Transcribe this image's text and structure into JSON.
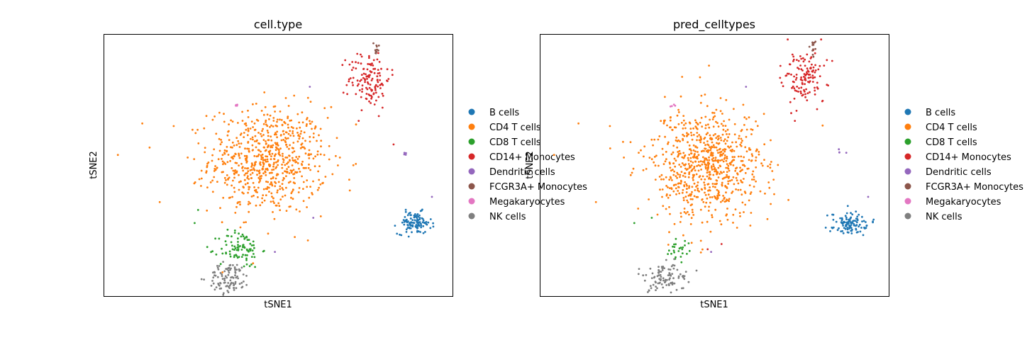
{
  "categories": [
    "B cells",
    "CD4 T cells",
    "CD8 T cells",
    "CD14+ Monocytes",
    "Dendritic cells",
    "FCGR3A+ Monocytes",
    "Megakaryocytes",
    "NK cells"
  ],
  "colors": {
    "B cells": "#1f77b4",
    "CD4 T cells": "#ff7f0e",
    "CD8 T cells": "#2ca02c",
    "CD14+ Monocytes": "#d62728",
    "Dendritic cells": "#9467bd",
    "FCGR3A+ Monocytes": "#8c564b",
    "Megakaryocytes": "#e377c2",
    "NK cells": "#7f7f7f"
  },
  "chart_data": [
    {
      "type": "scatter",
      "title": "cell.type",
      "xlabel": "tSNE1",
      "ylabel": "tSNE2",
      "ticks": "none",
      "legend": {
        "placement": "right",
        "entries": [
          "B cells",
          "CD4 T cells",
          "CD8 T cells",
          "CD14+ Monocytes",
          "Dendritic cells",
          "FCGR3A+ Monocytes",
          "Megakaryocytes",
          "NK cells"
        ]
      },
      "clusters": [
        {
          "category": "CD4 T cells",
          "center": [
            0.47,
            0.52
          ],
          "spread": [
            0.14,
            0.17
          ],
          "n": 700
        },
        {
          "category": "B cells",
          "center": [
            0.89,
            0.28
          ],
          "spread": [
            0.04,
            0.035
          ],
          "n": 110
        },
        {
          "category": "CD14+ Monocytes",
          "center": [
            0.76,
            0.83
          ],
          "spread": [
            0.05,
            0.09
          ],
          "n": 130
        },
        {
          "category": "FCGR3A+ Monocytes",
          "center": [
            0.78,
            0.95
          ],
          "spread": [
            0.01,
            0.03
          ],
          "n": 12
        },
        {
          "category": "CD8 T cells",
          "center": [
            0.39,
            0.18
          ],
          "spread": [
            0.05,
            0.06
          ],
          "n": 90
        },
        {
          "category": "NK cells",
          "center": [
            0.36,
            0.07
          ],
          "spread": [
            0.05,
            0.05
          ],
          "n": 100
        },
        {
          "category": "Dendritic cells",
          "center": [
            0.86,
            0.55
          ],
          "spread": [
            0.01,
            0.01
          ],
          "n": 4
        },
        {
          "category": "Megakaryocytes",
          "center": [
            0.38,
            0.73
          ],
          "spread": [
            0.006,
            0.004
          ],
          "n": 4
        }
      ],
      "outliers": [
        {
          "category": "CD4 T cells",
          "x": 0.11,
          "y": 0.66
        },
        {
          "category": "CD4 T cells",
          "x": 0.2,
          "y": 0.65
        },
        {
          "category": "CD4 T cells",
          "x": 0.04,
          "y": 0.54
        },
        {
          "category": "CD4 T cells",
          "x": 0.24,
          "y": 0.53
        },
        {
          "category": "CD4 T cells",
          "x": 0.28,
          "y": 0.45
        },
        {
          "category": "CD4 T cells",
          "x": 0.16,
          "y": 0.36
        },
        {
          "category": "CD8 T cells",
          "x": 0.27,
          "y": 0.33
        },
        {
          "category": "CD8 T cells",
          "x": 0.26,
          "y": 0.28
        },
        {
          "category": "CD14+ Monocytes",
          "x": 0.73,
          "y": 0.67
        },
        {
          "category": "CD14+ Monocytes",
          "x": 0.83,
          "y": 0.58
        },
        {
          "category": "Dendritic cells",
          "x": 0.59,
          "y": 0.8
        },
        {
          "category": "Dendritic cells",
          "x": 0.94,
          "y": 0.38
        },
        {
          "category": "Dendritic cells",
          "x": 0.6,
          "y": 0.3
        },
        {
          "category": "Dendritic cells",
          "x": 0.49,
          "y": 0.17
        }
      ]
    },
    {
      "type": "scatter",
      "title": "pred_celltypes",
      "xlabel": "tSNE1",
      "ylabel": "tSNE2",
      "ticks": "none",
      "legend": {
        "placement": "right",
        "entries": [
          "B cells",
          "CD4 T cells",
          "CD8 T cells",
          "CD14+ Monocytes",
          "Dendritic cells",
          "FCGR3A+ Monocytes",
          "Megakaryocytes",
          "NK cells"
        ]
      },
      "clusters": [
        {
          "category": "CD4 T cells",
          "center": [
            0.47,
            0.5
          ],
          "spread": [
            0.14,
            0.18
          ],
          "n": 760
        },
        {
          "category": "B cells",
          "center": [
            0.89,
            0.28
          ],
          "spread": [
            0.04,
            0.035
          ],
          "n": 110
        },
        {
          "category": "CD14+ Monocytes",
          "center": [
            0.76,
            0.83
          ],
          "spread": [
            0.05,
            0.09
          ],
          "n": 130
        },
        {
          "category": "FCGR3A+ Monocytes",
          "center": [
            0.78,
            0.95
          ],
          "spread": [
            0.01,
            0.03
          ],
          "n": 12
        },
        {
          "category": "CD8 T cells",
          "center": [
            0.4,
            0.18
          ],
          "spread": [
            0.03,
            0.04
          ],
          "n": 25
        },
        {
          "category": "NK cells",
          "center": [
            0.36,
            0.07
          ],
          "spread": [
            0.05,
            0.05
          ],
          "n": 100
        },
        {
          "category": "Dendritic cells",
          "center": [
            0.86,
            0.55
          ],
          "spread": [
            0.01,
            0.01
          ],
          "n": 4
        },
        {
          "category": "Megakaryocytes",
          "center": [
            0.38,
            0.73
          ],
          "spread": [
            0.006,
            0.004
          ],
          "n": 4
        }
      ],
      "outliers": [
        {
          "category": "CD4 T cells",
          "x": 0.11,
          "y": 0.66
        },
        {
          "category": "CD4 T cells",
          "x": 0.2,
          "y": 0.65
        },
        {
          "category": "CD4 T cells",
          "x": 0.04,
          "y": 0.54
        },
        {
          "category": "CD4 T cells",
          "x": 0.24,
          "y": 0.53
        },
        {
          "category": "CD4 T cells",
          "x": 0.16,
          "y": 0.36
        },
        {
          "category": "CD8 T cells",
          "x": 0.32,
          "y": 0.3
        },
        {
          "category": "CD8 T cells",
          "x": 0.27,
          "y": 0.28
        },
        {
          "category": "CD14+ Monocytes",
          "x": 0.73,
          "y": 0.67
        },
        {
          "category": "CD14+ Monocytes",
          "x": 0.52,
          "y": 0.2
        },
        {
          "category": "CD14+ Monocytes",
          "x": 0.48,
          "y": 0.18
        },
        {
          "category": "Dendritic cells",
          "x": 0.59,
          "y": 0.8
        },
        {
          "category": "Dendritic cells",
          "x": 0.94,
          "y": 0.38
        },
        {
          "category": "Dendritic cells",
          "x": 0.49,
          "y": 0.17
        }
      ]
    }
  ]
}
